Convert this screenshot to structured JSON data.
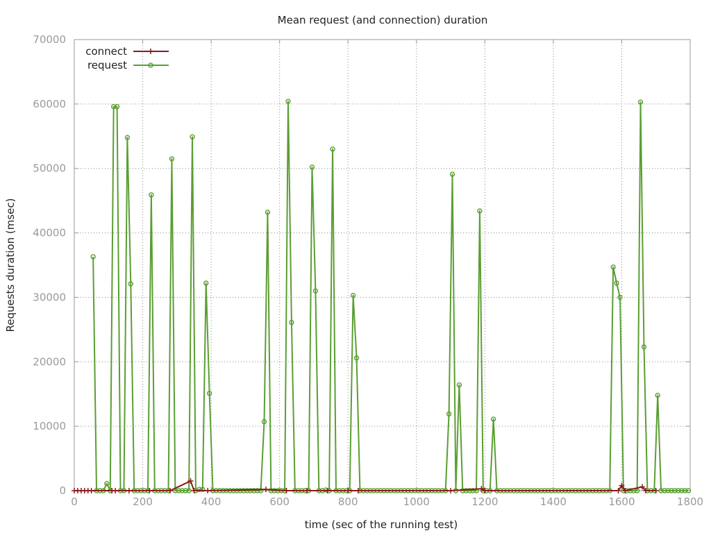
{
  "chart_data": {
    "type": "line",
    "title": "Mean request (and connection) duration",
    "xlabel": "time (sec of the running test)",
    "ylabel": "Requests duration (msec)",
    "xlim": [
      0,
      1800
    ],
    "ylim": [
      0,
      70000
    ],
    "xticks": [
      0,
      200,
      400,
      600,
      800,
      1000,
      1200,
      1400,
      1600,
      1800
    ],
    "yticks": [
      0,
      10000,
      20000,
      30000,
      40000,
      50000,
      60000,
      70000
    ],
    "grid": true,
    "legend_position": "top-left",
    "colors": {
      "connect": "#8b1a1a",
      "request": "#5a9e32",
      "grid": "#888888",
      "axis": "#999999"
    },
    "series": [
      {
        "name": "connect",
        "marker": "plus",
        "points": [
          [
            0,
            0
          ],
          [
            10,
            0
          ],
          [
            20,
            0
          ],
          [
            30,
            0
          ],
          [
            40,
            0
          ],
          [
            50,
            0
          ],
          [
            110,
            0
          ],
          [
            120,
            0
          ],
          [
            160,
            0
          ],
          [
            220,
            0
          ],
          [
            280,
            0
          ],
          [
            340,
            1500
          ],
          [
            350,
            0
          ],
          [
            390,
            0
          ],
          [
            560,
            200
          ],
          [
            620,
            0
          ],
          [
            680,
            0
          ],
          [
            740,
            0
          ],
          [
            800,
            0
          ],
          [
            830,
            0
          ],
          [
            1100,
            0
          ],
          [
            1190,
            300
          ],
          [
            1200,
            0
          ],
          [
            1590,
            0
          ],
          [
            1600,
            800
          ],
          [
            1610,
            0
          ],
          [
            1660,
            600
          ],
          [
            1670,
            0
          ],
          [
            1700,
            0
          ]
        ]
      },
      {
        "name": "request",
        "marker": "circle",
        "points": [
          [
            55,
            36300
          ],
          [
            65,
            0
          ],
          [
            75,
            0
          ],
          [
            85,
            0
          ],
          [
            95,
            1100
          ],
          [
            105,
            0
          ],
          [
            115,
            59600
          ],
          [
            125,
            59600
          ],
          [
            135,
            0
          ],
          [
            145,
            0
          ],
          [
            155,
            54800
          ],
          [
            165,
            32100
          ],
          [
            175,
            0
          ],
          [
            185,
            0
          ],
          [
            195,
            0
          ],
          [
            205,
            0
          ],
          [
            215,
            0
          ],
          [
            225,
            45900
          ],
          [
            235,
            0
          ],
          [
            245,
            0
          ],
          [
            255,
            0
          ],
          [
            265,
            0
          ],
          [
            275,
            0
          ],
          [
            285,
            51500
          ],
          [
            295,
            0
          ],
          [
            305,
            0
          ],
          [
            315,
            0
          ],
          [
            325,
            0
          ],
          [
            335,
            0
          ],
          [
            345,
            54900
          ],
          [
            355,
            0
          ],
          [
            365,
            200
          ],
          [
            375,
            200
          ],
          [
            385,
            32200
          ],
          [
            395,
            15100
          ],
          [
            405,
            0
          ],
          [
            415,
            0
          ],
          [
            425,
            0
          ],
          [
            435,
            0
          ],
          [
            445,
            0
          ],
          [
            455,
            0
          ],
          [
            465,
            0
          ],
          [
            475,
            0
          ],
          [
            485,
            0
          ],
          [
            495,
            0
          ],
          [
            505,
            0
          ],
          [
            515,
            0
          ],
          [
            525,
            0
          ],
          [
            535,
            0
          ],
          [
            545,
            0
          ],
          [
            555,
            10700
          ],
          [
            565,
            43200
          ],
          [
            575,
            0
          ],
          [
            585,
            0
          ],
          [
            595,
            0
          ],
          [
            605,
            0
          ],
          [
            615,
            0
          ],
          [
            625,
            60400
          ],
          [
            635,
            26100
          ],
          [
            645,
            0
          ],
          [
            655,
            0
          ],
          [
            665,
            0
          ],
          [
            675,
            0
          ],
          [
            685,
            0
          ],
          [
            695,
            50200
          ],
          [
            705,
            31000
          ],
          [
            715,
            0
          ],
          [
            725,
            0
          ],
          [
            735,
            100
          ],
          [
            745,
            0
          ],
          [
            755,
            53000
          ],
          [
            765,
            0
          ],
          [
            775,
            0
          ],
          [
            785,
            0
          ],
          [
            795,
            0
          ],
          [
            805,
            0
          ],
          [
            815,
            30300
          ],
          [
            825,
            20600
          ],
          [
            835,
            0
          ],
          [
            845,
            0
          ],
          [
            855,
            0
          ],
          [
            865,
            0
          ],
          [
            875,
            0
          ],
          [
            885,
            0
          ],
          [
            895,
            0
          ],
          [
            905,
            0
          ],
          [
            915,
            0
          ],
          [
            925,
            0
          ],
          [
            935,
            0
          ],
          [
            945,
            0
          ],
          [
            955,
            0
          ],
          [
            965,
            0
          ],
          [
            975,
            0
          ],
          [
            985,
            0
          ],
          [
            995,
            0
          ],
          [
            1005,
            0
          ],
          [
            1015,
            0
          ],
          [
            1025,
            0
          ],
          [
            1035,
            0
          ],
          [
            1045,
            0
          ],
          [
            1055,
            0
          ],
          [
            1065,
            0
          ],
          [
            1075,
            0
          ],
          [
            1085,
            0
          ],
          [
            1095,
            11900
          ],
          [
            1105,
            49100
          ],
          [
            1115,
            0
          ],
          [
            1125,
            16400
          ],
          [
            1135,
            0
          ],
          [
            1145,
            0
          ],
          [
            1155,
            0
          ],
          [
            1165,
            0
          ],
          [
            1175,
            0
          ],
          [
            1185,
            43400
          ],
          [
            1195,
            0
          ],
          [
            1205,
            0
          ],
          [
            1215,
            0
          ],
          [
            1225,
            11100
          ],
          [
            1235,
            0
          ],
          [
            1245,
            0
          ],
          [
            1255,
            0
          ],
          [
            1265,
            0
          ],
          [
            1275,
            0
          ],
          [
            1285,
            0
          ],
          [
            1295,
            0
          ],
          [
            1305,
            0
          ],
          [
            1315,
            0
          ],
          [
            1325,
            0
          ],
          [
            1335,
            0
          ],
          [
            1345,
            0
          ],
          [
            1355,
            0
          ],
          [
            1365,
            0
          ],
          [
            1375,
            0
          ],
          [
            1385,
            0
          ],
          [
            1395,
            0
          ],
          [
            1405,
            0
          ],
          [
            1415,
            0
          ],
          [
            1425,
            0
          ],
          [
            1435,
            0
          ],
          [
            1445,
            0
          ],
          [
            1455,
            0
          ],
          [
            1465,
            0
          ],
          [
            1475,
            0
          ],
          [
            1485,
            0
          ],
          [
            1495,
            0
          ],
          [
            1505,
            0
          ],
          [
            1515,
            0
          ],
          [
            1525,
            0
          ],
          [
            1535,
            0
          ],
          [
            1545,
            0
          ],
          [
            1555,
            0
          ],
          [
            1565,
            0
          ],
          [
            1575,
            34700
          ],
          [
            1585,
            32200
          ],
          [
            1595,
            30000
          ],
          [
            1605,
            0
          ],
          [
            1615,
            0
          ],
          [
            1625,
            0
          ],
          [
            1635,
            0
          ],
          [
            1645,
            0
          ],
          [
            1655,
            60300
          ],
          [
            1665,
            22300
          ],
          [
            1675,
            0
          ],
          [
            1685,
            0
          ],
          [
            1695,
            0
          ],
          [
            1705,
            14800
          ],
          [
            1715,
            0
          ],
          [
            1725,
            0
          ],
          [
            1735,
            0
          ],
          [
            1745,
            0
          ],
          [
            1755,
            0
          ],
          [
            1765,
            0
          ],
          [
            1775,
            0
          ],
          [
            1785,
            0
          ],
          [
            1795,
            0
          ]
        ]
      }
    ]
  }
}
